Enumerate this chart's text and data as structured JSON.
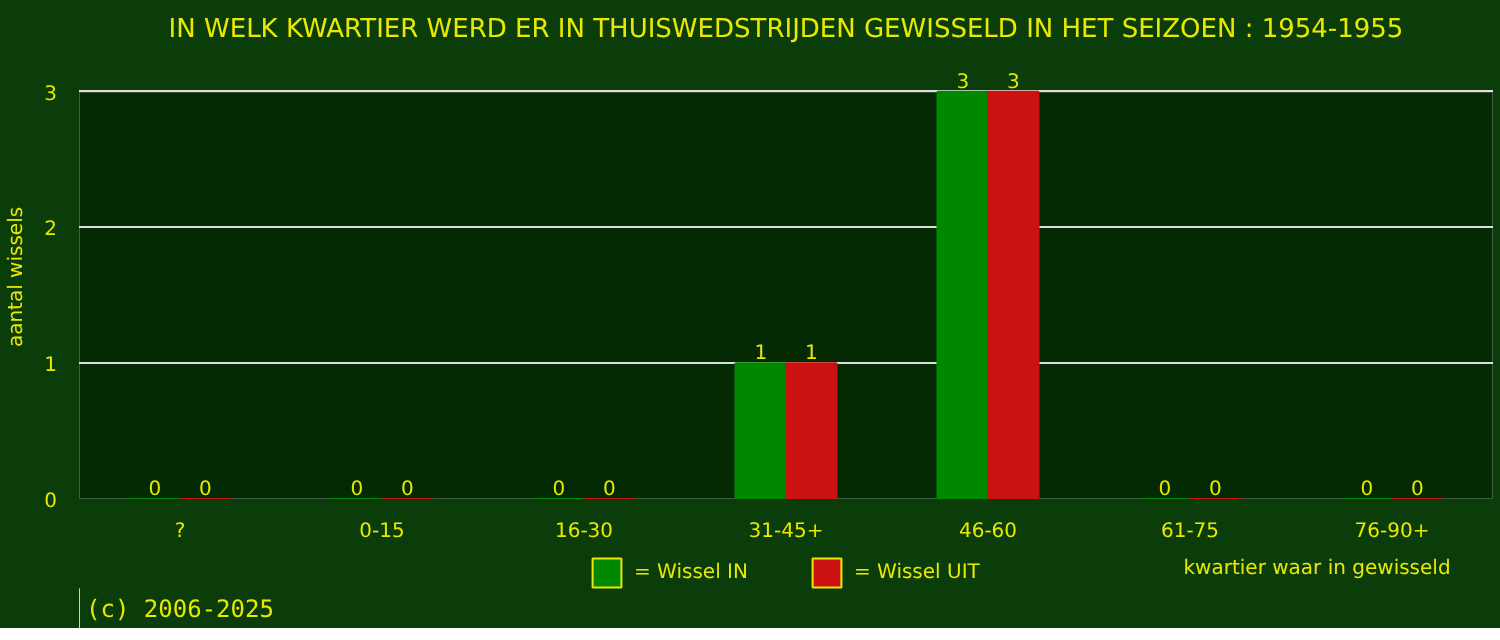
{
  "chart_data": {
    "type": "bar",
    "title": "IN WELK KWARTIER WERD ER IN THUISWEDSTRIJDEN GEWISSELD IN HET SEIZOEN : 1954-1955",
    "xlabel": "kwartier waar in gewisseld",
    "ylabel": "aantal wissels",
    "categories": [
      "?",
      "0-15",
      "16-30",
      "31-45+",
      "46-60",
      "61-75",
      "76-90+"
    ],
    "series": [
      {
        "name": "= Wissel IN",
        "color": "#008800",
        "values": [
          0,
          0,
          0,
          1,
          3,
          0,
          0
        ]
      },
      {
        "name": "= Wissel UIT",
        "color": "#cc1111",
        "values": [
          0,
          0,
          0,
          1,
          3,
          0,
          0
        ]
      }
    ],
    "ylim": [
      0,
      3
    ],
    "yticks": [
      0,
      1,
      2,
      3
    ],
    "grid": "y",
    "legend": "bottom",
    "data_labels": true,
    "annotations": [
      "(c) 2006-2025"
    ]
  }
}
